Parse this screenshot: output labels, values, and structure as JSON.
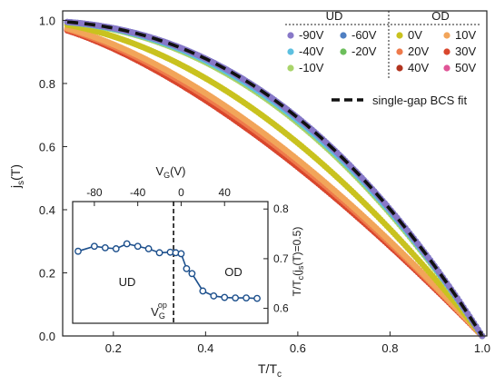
{
  "chart_data": [
    {
      "type": "scatter",
      "xlabel": "T/T",
      "xlabel_sub": "c",
      "ylabel": "j",
      "ylabel_sub": "s",
      "ylabel_suffix": "(T)",
      "xlim": [
        0.09,
        1.01
      ],
      "ylim": [
        0.0,
        1.03
      ],
      "xticks": [
        0.2,
        0.4,
        0.6,
        0.8,
        1.0
      ],
      "xtick_labels": [
        "0.2",
        "0.4",
        "0.6",
        "0.8",
        "1.0"
      ],
      "yticks": [
        0.0,
        0.2,
        0.4,
        0.6,
        0.8,
        1.0
      ],
      "ytick_labels": [
        "0.0",
        "0.2",
        "0.4",
        "0.6",
        "0.8",
        "1.0"
      ],
      "legend_groups": [
        "UD",
        "OD"
      ],
      "legend_placement": "top-right",
      "series": [
        {
          "name": "-90V",
          "color": "#8878c8",
          "group": "UD",
          "model": {
            "kind": "power",
            "p": 2.3
          }
        },
        {
          "name": "-60V",
          "color": "#4f7fc2",
          "group": "UD",
          "model": {
            "kind": "power",
            "p": 2.3
          }
        },
        {
          "name": "-40V",
          "color": "#5dc0e0",
          "group": "UD",
          "model": {
            "kind": "power",
            "p": 2.25
          }
        },
        {
          "name": "-20V",
          "color": "#6cbe5b",
          "group": "UD",
          "model": {
            "kind": "power",
            "p": 2.25
          }
        },
        {
          "name": "-10V",
          "color": "#a9d46a",
          "group": "UD",
          "model": {
            "kind": "power",
            "p": 2.2
          }
        },
        {
          "name": "0V",
          "color": "#c9c21f",
          "group": "OD",
          "model": {
            "kind": "power",
            "p": 1.85
          }
        },
        {
          "name": "10V",
          "color": "#f2a55a",
          "group": "OD",
          "model": {
            "kind": "power",
            "p": 1.6
          }
        },
        {
          "name": "20V",
          "color": "#ee7a4b",
          "group": "OD",
          "model": {
            "kind": "power",
            "p": 1.55
          }
        },
        {
          "name": "30V",
          "color": "#d9472d",
          "group": "OD",
          "model": {
            "kind": "power",
            "p": 1.5
          }
        },
        {
          "name": "40V",
          "color": "#b2341f",
          "group": "OD",
          "model": {
            "kind": "power",
            "p": 1.5
          }
        },
        {
          "name": "50V",
          "color": "#e05597",
          "group": "OD",
          "model": {
            "kind": "power",
            "p": 1.5
          }
        }
      ],
      "fit": {
        "name": "single-gap BCS fit",
        "color": "#111111",
        "style": "dashed",
        "model": {
          "kind": "power",
          "p": 2.3
        }
      }
    },
    {
      "type": "line",
      "xlabel": "V",
      "xlabel_sub": "G",
      "xlabel_suffix": "(V)",
      "ylabel": "T/T",
      "ylabel_sub": "c",
      "ylabel_suffix": "(j",
      "ylabel_sub2": "s",
      "ylabel_suffix2": "(T)=0.5)",
      "xlim": [
        -100,
        80
      ],
      "ylim": [
        0.57,
        0.815
      ],
      "xticks": [
        -80,
        -40,
        0,
        40
      ],
      "xtick_labels": [
        "-80",
        "-40",
        "0",
        "40"
      ],
      "yticks": [
        0.6,
        0.7,
        0.8
      ],
      "ytick_labels": [
        "0.6",
        "0.7",
        "0.8"
      ],
      "x": [
        -95,
        -80,
        -70,
        -60,
        -50,
        -40,
        -30,
        -20,
        -10,
        -5,
        0,
        5,
        10,
        20,
        30,
        40,
        50,
        60,
        70
      ],
      "y": [
        0.715,
        0.725,
        0.722,
        0.72,
        0.73,
        0.725,
        0.72,
        0.712,
        0.713,
        0.712,
        0.71,
        0.68,
        0.67,
        0.635,
        0.625,
        0.622,
        0.621,
        0.621,
        0.62
      ],
      "color": "#1c4f8c",
      "divider_x": -7,
      "region_labels": [
        "UD",
        "OD"
      ],
      "divider_label": "V",
      "divider_label_sub": "G",
      "divider_label_sup": "op"
    }
  ]
}
